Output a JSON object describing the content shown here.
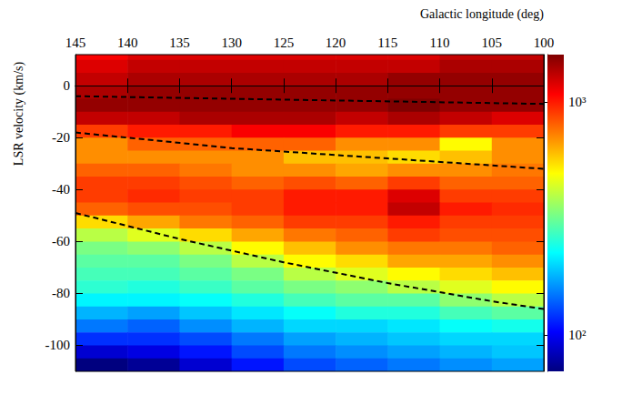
{
  "chart_data": {
    "type": "heatmap",
    "x_label": "Galactic longitude (deg)",
    "y_label": "LSR velocity (km/s)",
    "xlim": [
      145,
      100
    ],
    "ylim": [
      -110,
      12
    ],
    "xticks": [
      145,
      140,
      135,
      130,
      125,
      120,
      115,
      110,
      105,
      100
    ],
    "yticks": [
      -100,
      -80,
      -60,
      -40,
      -20,
      0
    ],
    "cells": {
      "x_edges": [
        145,
        140,
        135,
        130,
        125,
        120,
        115,
        110,
        105,
        100
      ],
      "y_edges": [
        15,
        10,
        5,
        0,
        -5,
        -10,
        -15,
        -20,
        -25,
        -30,
        -35,
        -40,
        -45,
        -50,
        -55,
        -60,
        -65,
        -70,
        -75,
        -80,
        -85,
        -90,
        -95,
        -100,
        -105,
        -110
      ],
      "values": [
        [
          1100,
          1200,
          1200,
          1200,
          1200,
          1200,
          1200,
          1300,
          1300
        ],
        [
          1200,
          1300,
          1300,
          1300,
          1300,
          1300,
          1300,
          1400,
          1400
        ],
        [
          1300,
          1400,
          1400,
          1400,
          1400,
          1400,
          1500,
          1500,
          1500
        ],
        [
          1400,
          1500,
          1500,
          1500,
          1500,
          1500,
          1500,
          1500,
          1500
        ],
        [
          1500,
          1500,
          1500,
          1500,
          1500,
          1500,
          1600,
          1500,
          1500
        ],
        [
          1300,
          1300,
          1400,
          1400,
          1400,
          1300,
          1400,
          1300,
          1200
        ],
        [
          900,
          1000,
          1000,
          1100,
          1100,
          1000,
          1000,
          900,
          900
        ],
        [
          700,
          800,
          800,
          800,
          800,
          700,
          700,
          500,
          700
        ],
        [
          700,
          700,
          700,
          700,
          600,
          600,
          550,
          600,
          700
        ],
        [
          800,
          800,
          750,
          700,
          700,
          650,
          700,
          700,
          750
        ],
        [
          900,
          900,
          850,
          800,
          850,
          800,
          900,
          800,
          800
        ],
        [
          900,
          950,
          900,
          900,
          1000,
          1000,
          1200,
          900,
          900
        ],
        [
          800,
          850,
          850,
          900,
          1000,
          1000,
          1300,
          1000,
          950
        ],
        [
          550,
          650,
          750,
          800,
          900,
          900,
          1000,
          900,
          900
        ],
        [
          400,
          450,
          550,
          650,
          750,
          800,
          900,
          850,
          850
        ],
        [
          330,
          350,
          400,
          500,
          600,
          700,
          750,
          750,
          800
        ],
        [
          300,
          300,
          330,
          400,
          500,
          550,
          650,
          650,
          700
        ],
        [
          280,
          280,
          300,
          330,
          400,
          450,
          500,
          550,
          600
        ],
        [
          260,
          250,
          270,
          300,
          330,
          350,
          400,
          450,
          500
        ],
        [
          220,
          220,
          230,
          250,
          280,
          300,
          300,
          350,
          400
        ],
        [
          180,
          170,
          190,
          210,
          230,
          250,
          250,
          280,
          300
        ],
        [
          150,
          140,
          160,
          180,
          200,
          200,
          210,
          230,
          240
        ],
        [
          120,
          120,
          130,
          150,
          170,
          180,
          190,
          200,
          200
        ],
        [
          90,
          95,
          110,
          130,
          150,
          160,
          170,
          180,
          190
        ],
        [
          70,
          75,
          90,
          110,
          130,
          140,
          150,
          160,
          170
        ]
      ]
    },
    "colorbar": {
      "log": true,
      "zlim": [
        70,
        1600
      ],
      "ticks": [
        {
          "value": 100,
          "label": "10²"
        },
        {
          "value": 1000,
          "label": "10³"
        }
      ]
    },
    "curves": [
      {
        "x": [
          145,
          100
        ],
        "y": [
          -4,
          -7
        ],
        "color": "#000000",
        "line_style": "dashed"
      },
      {
        "x": [
          145,
          130,
          115,
          100
        ],
        "y": [
          -18,
          -24,
          -28,
          -32
        ],
        "color": "#000000",
        "line_style": "dashed"
      },
      {
        "x": [
          145,
          135,
          125,
          115,
          105,
          100
        ],
        "y": [
          -49,
          -59,
          -68,
          -76,
          -83,
          -86
        ],
        "color": "#000000",
        "line_style": "dashed"
      }
    ]
  }
}
